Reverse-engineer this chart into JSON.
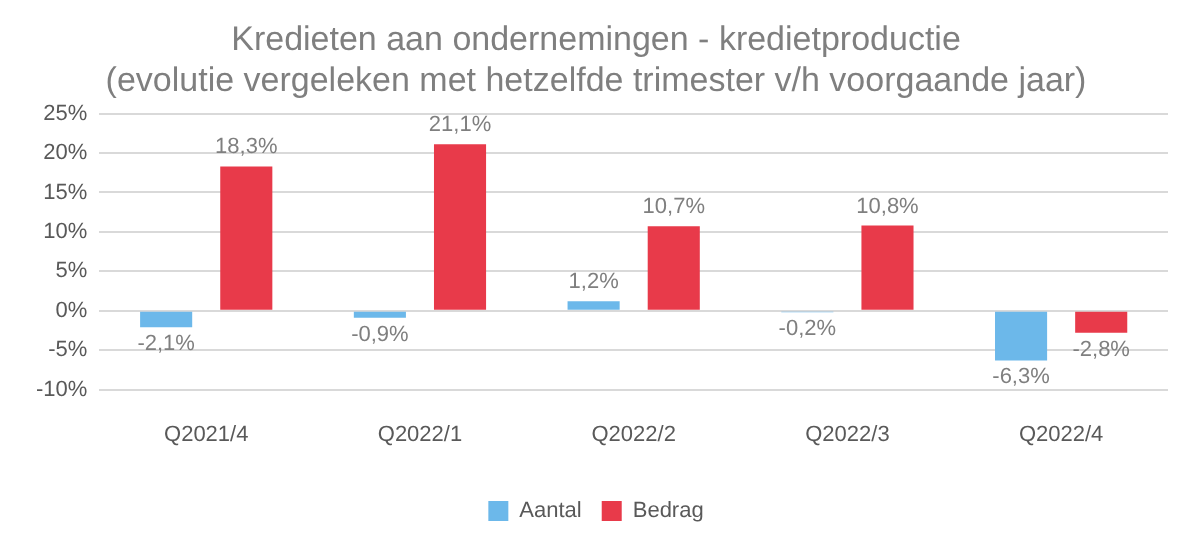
{
  "chart_data": {
    "type": "bar",
    "title": "Kredieten aan ondernemingen - kredietproductie",
    "subtitle": "(evolutie vergeleken met hetzelfde trimester v/h voorgaande jaar)",
    "categories": [
      "Q2021/4",
      "Q2022/1",
      "Q2022/2",
      "Q2022/3",
      "Q2022/4"
    ],
    "series": [
      {
        "name": "Aantal",
        "color": "#6cb8ea",
        "values": [
          -2.1,
          -0.9,
          1.2,
          -0.2,
          -6.3
        ],
        "value_labels": [
          "-2,1%",
          "-0,9%",
          "1,2%",
          "-0,2%",
          "-6,3%"
        ]
      },
      {
        "name": "Bedrag",
        "color": "#e83a4a",
        "values": [
          18.3,
          21.1,
          10.7,
          10.8,
          -2.8
        ],
        "value_labels": [
          "18,3%",
          "21,1%",
          "10,7%",
          "10,8%",
          "-2,8%"
        ]
      }
    ],
    "ylim": [
      -10,
      25
    ],
    "yticks": [
      {
        "value": -10,
        "label": "-10%"
      },
      {
        "value": -5,
        "label": "-5%"
      },
      {
        "value": 0,
        "label": "0%"
      },
      {
        "value": 5,
        "label": "5%"
      },
      {
        "value": 10,
        "label": "10%"
      },
      {
        "value": 15,
        "label": "15%"
      },
      {
        "value": 20,
        "label": "20%"
      },
      {
        "value": 25,
        "label": "25%"
      }
    ],
    "grid": "y",
    "legend": "bottom"
  }
}
